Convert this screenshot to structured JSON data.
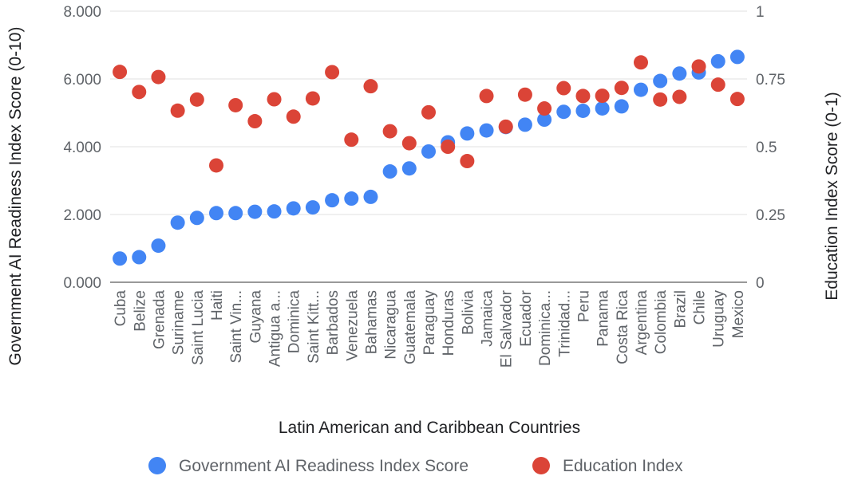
{
  "chart_data": {
    "type": "scatter",
    "xlabel": "Latin American and Caribbean Countries",
    "ylabel_left": "Government AI Readiness Index Score (0-10)",
    "ylabel_right": "Education Index Score (0-1)",
    "ylim_left": [
      0,
      8
    ],
    "ylim_right": [
      0,
      1
    ],
    "yticks_left": [
      "0.000",
      "2.000",
      "4.000",
      "6.000",
      "8.000"
    ],
    "yticks_right": [
      "0",
      "0.25",
      "0.5",
      "0.75",
      "1"
    ],
    "grid": true,
    "legend_position": "bottom",
    "categories": [
      "Cuba",
      "Belize",
      "Grenada",
      "Suriname",
      "Saint Lucia",
      "Haiti",
      "Saint Vin...",
      "Guyana",
      "Antigua a...",
      "Dominica",
      "Saint Kitt...",
      "Barbados",
      "Venezuela",
      "Bahamas",
      "Nicaragua",
      "Guatemala",
      "Paraguay",
      "Honduras",
      "Bolivia",
      "Jamaica",
      "El Salvador",
      "Ecuador",
      "Dominica...",
      "Trinidad...",
      "Peru",
      "Panama",
      "Costa Rica",
      "Argentina",
      "Colombia",
      "Brazil",
      "Chile",
      "Uruguay",
      "Mexico"
    ],
    "series": [
      {
        "name": "Government AI Readiness Index Score",
        "axis": "left",
        "color": "#4285f4",
        "values": [
          0.7,
          0.74,
          1.08,
          1.76,
          1.9,
          2.04,
          2.04,
          2.08,
          2.09,
          2.18,
          2.21,
          2.42,
          2.47,
          2.52,
          3.27,
          3.36,
          3.86,
          4.13,
          4.39,
          4.48,
          4.58,
          4.65,
          4.8,
          5.03,
          5.06,
          5.13,
          5.19,
          5.68,
          5.94,
          6.16,
          6.19,
          6.52,
          6.65
        ]
      },
      {
        "name": "Education Index",
        "axis": "right",
        "color": "#db4437",
        "values": [
          0.776,
          0.702,
          0.757,
          0.633,
          0.674,
          0.431,
          0.653,
          0.594,
          0.675,
          0.611,
          0.678,
          0.775,
          0.526,
          0.723,
          0.557,
          0.513,
          0.627,
          0.5,
          0.447,
          0.687,
          0.574,
          0.692,
          0.641,
          0.716,
          0.687,
          0.688,
          0.717,
          0.811,
          0.674,
          0.684,
          0.796,
          0.729,
          0.676
        ]
      }
    ]
  }
}
